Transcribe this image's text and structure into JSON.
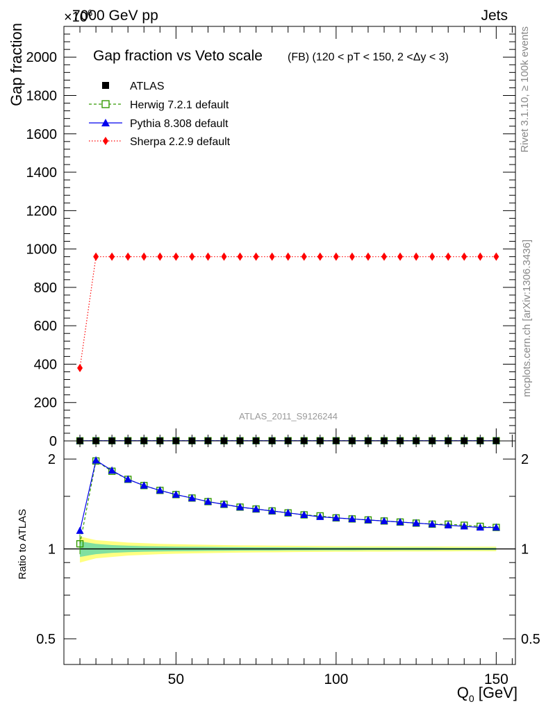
{
  "header": {
    "exponent": "×10",
    "exponent_power": "6",
    "left": "7000 GeV pp",
    "right": "Jets"
  },
  "side": {
    "rivet": "Rivet 3.1.10, ≥ 100k events",
    "mcplots": "mcplots.cern.ch [arXiv:1306.3436]"
  },
  "chart_data": [
    {
      "type": "line",
      "title": "Gap fraction vs Veto scale",
      "subtitle": "(FB) (120 < pT < 150, 2 <Δy < 3)",
      "ylabel": "Gap fraction",
      "xlabel": "",
      "watermark": "ATLAS_2011_S9126244",
      "xlim": [
        15,
        156
      ],
      "ylim": [
        0,
        2160
      ],
      "yticks": [
        0,
        200,
        400,
        600,
        800,
        1000,
        1200,
        1400,
        1600,
        1800,
        2000
      ],
      "x": [
        20,
        25,
        30,
        35,
        40,
        45,
        50,
        55,
        60,
        65,
        70,
        75,
        80,
        85,
        90,
        95,
        100,
        105,
        110,
        115,
        120,
        125,
        130,
        135,
        140,
        145,
        150
      ],
      "series": [
        {
          "name": "ATLAS",
          "color": "#000000",
          "marker": "square-filled",
          "line": "none",
          "values": [
            0.5,
            0.49,
            0.53,
            0.56,
            0.59,
            0.62,
            0.64,
            0.66,
            0.68,
            0.7,
            0.72,
            0.73,
            0.75,
            0.76,
            0.77,
            0.78,
            0.79,
            0.8,
            0.81,
            0.82,
            0.82,
            0.83,
            0.84,
            0.84,
            0.85,
            0.86,
            0.86
          ]
        },
        {
          "name": "Herwig 7.2.1 default",
          "color": "#339900",
          "marker": "square-open",
          "line": "dashed",
          "values": [
            0.52,
            0.97,
            0.97,
            0.97,
            0.97,
            0.97,
            0.97,
            0.97,
            0.97,
            0.97,
            0.97,
            0.97,
            0.97,
            0.97,
            0.97,
            0.97,
            0.97,
            0.97,
            0.97,
            0.97,
            0.97,
            0.97,
            0.97,
            0.97,
            0.97,
            0.97,
            0.97
          ]
        },
        {
          "name": "Pythia 8.308 default",
          "color": "#0000ee",
          "marker": "triangle-filled",
          "line": "solid",
          "values": [
            0.57,
            0.97,
            0.97,
            0.97,
            0.97,
            0.97,
            0.97,
            0.97,
            0.97,
            0.97,
            0.97,
            0.97,
            0.97,
            0.97,
            0.97,
            0.97,
            0.97,
            0.97,
            0.97,
            0.97,
            0.97,
            0.97,
            0.97,
            0.97,
            0.97,
            0.97,
            0.97
          ]
        },
        {
          "name": "Sherpa 2.2.9 default",
          "color": "#ff0000",
          "marker": "diamond-filled",
          "line": "dotted",
          "values": [
            380,
            960,
            960,
            960,
            960,
            960,
            960,
            960,
            960,
            960,
            960,
            960,
            960,
            960,
            960,
            960,
            960,
            960,
            960,
            960,
            960,
            960,
            960,
            960,
            960,
            960,
            960
          ]
        }
      ],
      "legend_position": "top-left"
    },
    {
      "type": "line",
      "title": "",
      "ylabel": "Ratio to ATLAS",
      "xlabel": "Q",
      "xlabel_subscript": "0",
      "xlabel_unit": " [GeV]",
      "xlim": [
        15,
        156
      ],
      "ylim": [
        0.41,
        2.3
      ],
      "yscale": "log",
      "yticks": [
        0.5,
        1,
        2
      ],
      "ytick_labels": [
        "0.5",
        "1",
        "2"
      ],
      "xticks": [
        50,
        100,
        150
      ],
      "xtick_labels": [
        "50",
        "100",
        "150"
      ],
      "x": [
        20,
        25,
        30,
        35,
        40,
        45,
        50,
        55,
        60,
        65,
        70,
        75,
        80,
        85,
        90,
        95,
        100,
        105,
        110,
        115,
        120,
        125,
        130,
        135,
        140,
        145,
        150
      ],
      "band_inner": [
        0.06,
        0.04,
        0.03,
        0.025,
        0.022,
        0.02,
        0.018,
        0.017,
        0.016,
        0.015,
        0.014,
        0.013,
        0.013,
        0.012,
        0.012,
        0.011,
        0.011,
        0.011,
        0.01,
        0.01,
        0.01,
        0.01,
        0.01,
        0.009,
        0.009,
        0.009,
        0.009
      ],
      "band_outer": [
        0.1,
        0.07,
        0.06,
        0.05,
        0.045,
        0.04,
        0.037,
        0.034,
        0.032,
        0.03,
        0.028,
        0.027,
        0.026,
        0.025,
        0.024,
        0.023,
        0.022,
        0.022,
        0.021,
        0.021,
        0.02,
        0.02,
        0.019,
        0.019,
        0.018,
        0.018,
        0.018
      ],
      "series": [
        {
          "name": "Herwig 7.2.1 default",
          "color": "#339900",
          "marker": "square-open",
          "line": "dashed",
          "values": [
            1.04,
            1.97,
            1.82,
            1.71,
            1.63,
            1.57,
            1.52,
            1.48,
            1.44,
            1.41,
            1.38,
            1.36,
            1.34,
            1.32,
            1.3,
            1.29,
            1.27,
            1.26,
            1.25,
            1.24,
            1.23,
            1.22,
            1.21,
            1.21,
            1.2,
            1.19,
            1.18
          ]
        },
        {
          "name": "Pythia 8.308 default",
          "color": "#0000ee",
          "marker": "triangle-filled",
          "line": "solid",
          "values": [
            1.15,
            1.98,
            1.83,
            1.71,
            1.63,
            1.57,
            1.52,
            1.48,
            1.44,
            1.41,
            1.38,
            1.36,
            1.34,
            1.32,
            1.3,
            1.28,
            1.27,
            1.26,
            1.25,
            1.24,
            1.23,
            1.22,
            1.21,
            1.2,
            1.19,
            1.18,
            1.18
          ]
        }
      ]
    }
  ]
}
